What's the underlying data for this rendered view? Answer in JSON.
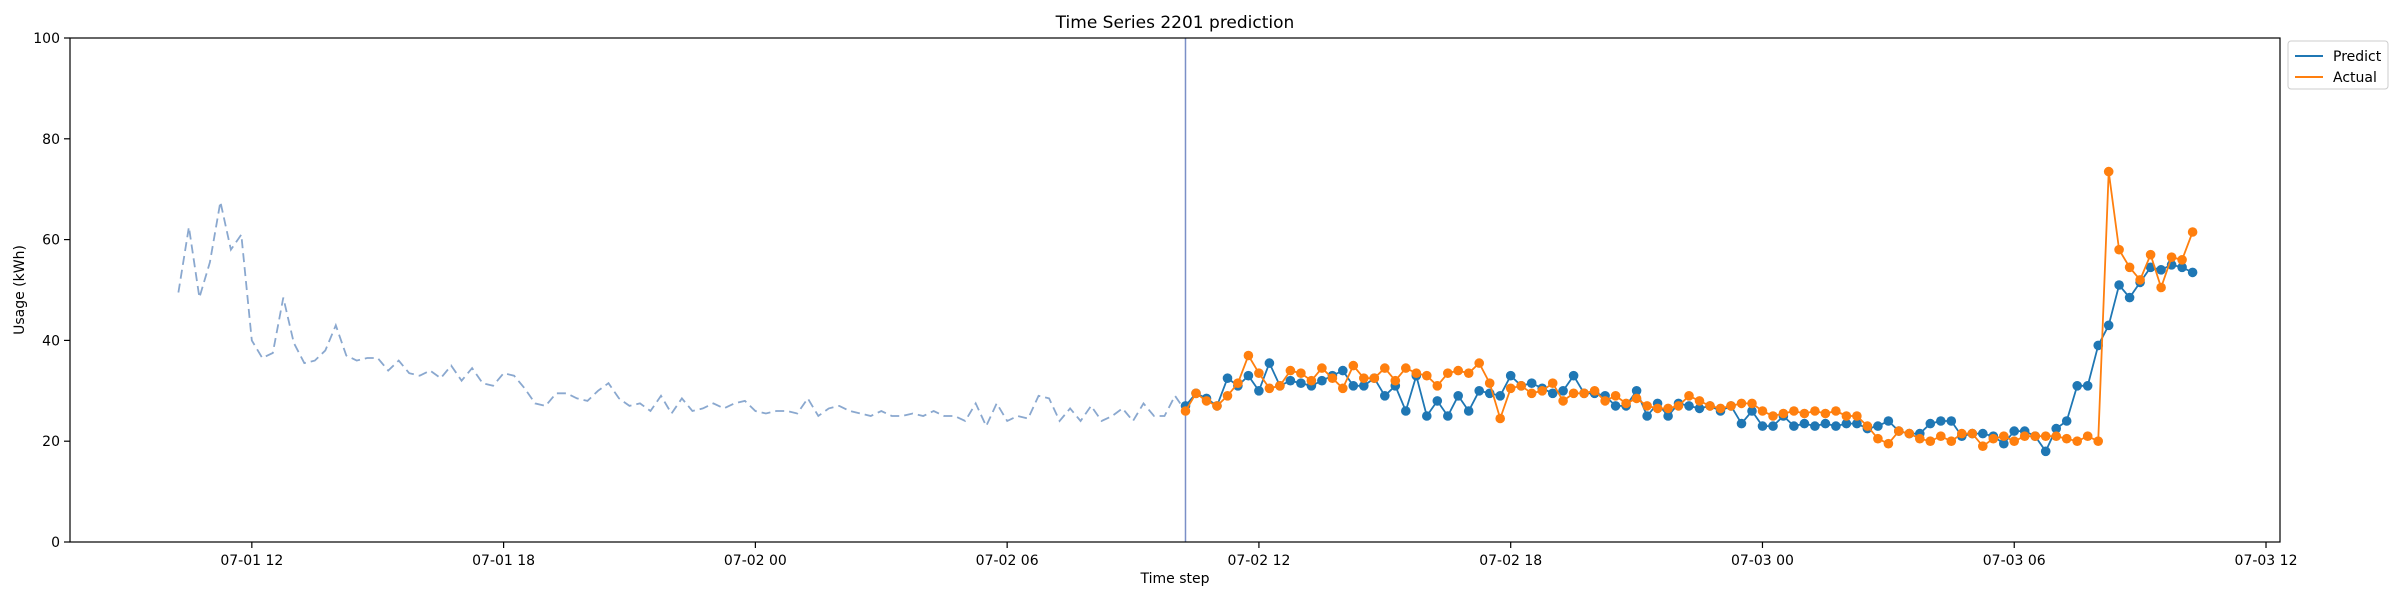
{
  "chart_data": {
    "type": "line",
    "title": "Time Series 2201 prediction",
    "xlabel": "Time step",
    "ylabel": "Usage (kWh)",
    "ylim": [
      0,
      100
    ],
    "yticks": [
      0,
      20,
      40,
      60,
      80,
      100
    ],
    "xlim": [
      "2024-07-01 07:40",
      "2024-07-03 12:20"
    ],
    "xticks": [
      {
        "t": "2024-07-01 12:00",
        "label": "07-01 12"
      },
      {
        "t": "2024-07-01 18:00",
        "label": "07-01 18"
      },
      {
        "t": "2024-07-02 00:00",
        "label": "07-02 00"
      },
      {
        "t": "2024-07-02 06:00",
        "label": "07-02 06"
      },
      {
        "t": "2024-07-02 12:00",
        "label": "07-02 12"
      },
      {
        "t": "2024-07-02 18:00",
        "label": "07-02 18"
      },
      {
        "t": "2024-07-03 00:00",
        "label": "07-03 00"
      },
      {
        "t": "2024-07-03 06:00",
        "label": "07-03 06"
      },
      {
        "t": "2024-07-03 12:00",
        "label": "07-03 12"
      }
    ],
    "vline": "2024-07-02 10:15",
    "legend": {
      "position": "outside-top-right"
    },
    "colors": {
      "history": "#8aa8cf",
      "predict": "#1f77b4",
      "actual": "#ff7f0e",
      "vline": "#7b8fc7"
    },
    "history": {
      "start": "2024-07-01 10:15",
      "step_minutes": 15,
      "values": [
        49.5,
        62.5,
        48.5,
        55.5,
        67.5,
        58,
        61,
        40,
        36.5,
        37.5,
        48.5,
        39.5,
        35.5,
        36,
        38,
        43,
        37,
        36,
        36.5,
        36.5,
        34,
        36,
        33.5,
        33,
        34,
        32.5,
        35,
        32,
        34.5,
        31.5,
        31,
        33.5,
        33,
        30.5,
        27.5,
        27,
        29.5,
        29.5,
        28.5,
        28,
        30,
        31.5,
        28.5,
        27,
        27.5,
        26,
        29,
        25.5,
        28.5,
        26,
        26.5,
        27.5,
        26.5,
        27.5,
        28,
        26,
        25.5,
        26,
        26,
        25.5,
        28.5,
        25,
        26.5,
        27,
        26,
        25.5,
        25,
        26,
        25,
        25,
        25.5,
        25,
        26,
        25,
        25,
        24,
        27.5,
        23,
        27.5,
        24,
        25,
        24.5,
        29,
        28.5,
        24,
        26.5,
        24,
        27,
        24,
        25,
        26.5,
        24,
        27.5,
        25,
        25,
        29,
        26
      ]
    },
    "series": [
      {
        "name": "Predict",
        "start": "2024-07-02 10:15",
        "step_minutes": 15,
        "values": [
          27,
          29.5,
          28.5,
          27,
          32.5,
          31,
          33,
          30,
          35.5,
          31,
          32,
          31.5,
          31,
          32,
          33,
          34,
          31,
          31,
          32.5,
          29,
          31,
          26,
          33,
          25,
          28,
          25,
          29,
          26,
          30,
          29.5,
          29,
          33,
          31,
          31.5,
          30.5,
          29.5,
          30,
          33,
          29.5,
          29.5,
          29,
          27,
          27,
          30,
          25,
          27.5,
          25,
          27.5,
          27,
          26.5,
          27,
          26,
          27,
          23.5,
          26,
          23,
          23,
          25,
          23,
          23.5,
          23,
          23.5,
          23,
          23.5,
          23.5,
          22.5,
          23,
          24,
          22,
          21.5,
          21.5,
          23.5,
          24,
          24,
          21,
          21.5,
          21.5,
          21,
          19.5,
          22,
          22,
          21,
          18,
          22.5,
          24,
          31,
          31,
          39,
          43,
          51,
          48.5,
          51.5,
          54.5,
          54,
          55,
          54.5,
          53.5
        ]
      },
      {
        "name": "Actual",
        "start": "2024-07-02 10:15",
        "step_minutes": 15,
        "values": [
          26,
          29.5,
          28,
          27,
          29,
          31.5,
          37,
          33.5,
          30.5,
          31,
          34,
          33.5,
          32,
          34.5,
          32.5,
          30.5,
          35,
          32.5,
          32.5,
          34.5,
          32,
          34.5,
          33.5,
          33,
          31,
          33.5,
          34,
          33.5,
          35.5,
          31.5,
          24.5,
          30.5,
          31,
          29.5,
          30,
          31.5,
          28,
          29.5,
          29.5,
          30,
          28,
          29,
          27.5,
          28.5,
          27,
          26.5,
          26.5,
          27,
          29,
          28,
          27,
          26.5,
          27,
          27.5,
          27.5,
          26,
          25,
          25.5,
          26,
          25.5,
          26,
          25.5,
          26,
          25,
          25,
          23,
          20.5,
          19.5,
          22,
          21.5,
          20.5,
          20,
          21,
          20,
          21.5,
          21.5,
          19,
          20.5,
          21,
          20,
          21,
          21,
          21,
          21,
          20.5,
          20,
          21,
          20,
          73.5,
          58,
          54.5,
          52,
          57,
          50.5,
          56.5,
          56,
          61.5
        ]
      }
    ]
  }
}
